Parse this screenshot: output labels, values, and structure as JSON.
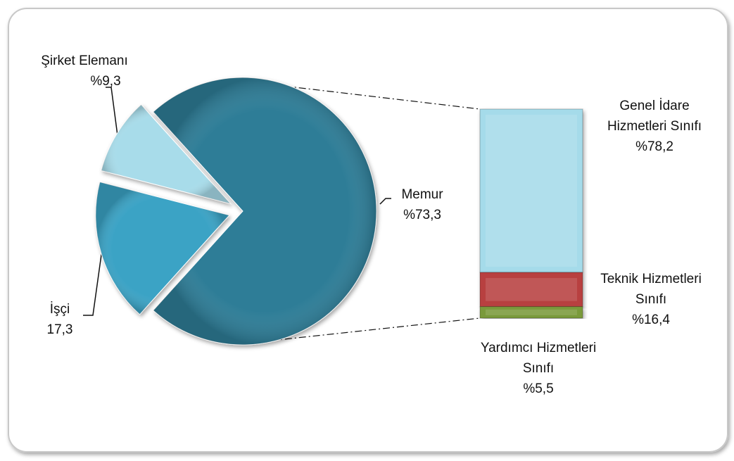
{
  "chart_data": {
    "type": "pie-of-bar",
    "pie": {
      "categories": [
        "Memur",
        "İşçi",
        "Şirket Elemanı"
      ],
      "values": [
        73.3,
        17.3,
        9.3
      ],
      "value_labels": [
        "%73,3",
        "17,3",
        "%9,3"
      ],
      "colors": [
        "#2f7d97",
        "#3ba3c5",
        "#a8dcea"
      ]
    },
    "bar": {
      "categories": [
        "Genel İdare Hizmetleri Sınıfı",
        "Teknik Hizmetleri Sınıfı",
        "Yardımcı Hizmetleri Sınıfı"
      ],
      "values": [
        78.2,
        16.4,
        5.5
      ],
      "value_labels": [
        "%78,2",
        "%16,4",
        "%5,5"
      ],
      "colors": [
        "#a5dbea",
        "#b8403f",
        "#7a9a3a"
      ]
    }
  }
}
